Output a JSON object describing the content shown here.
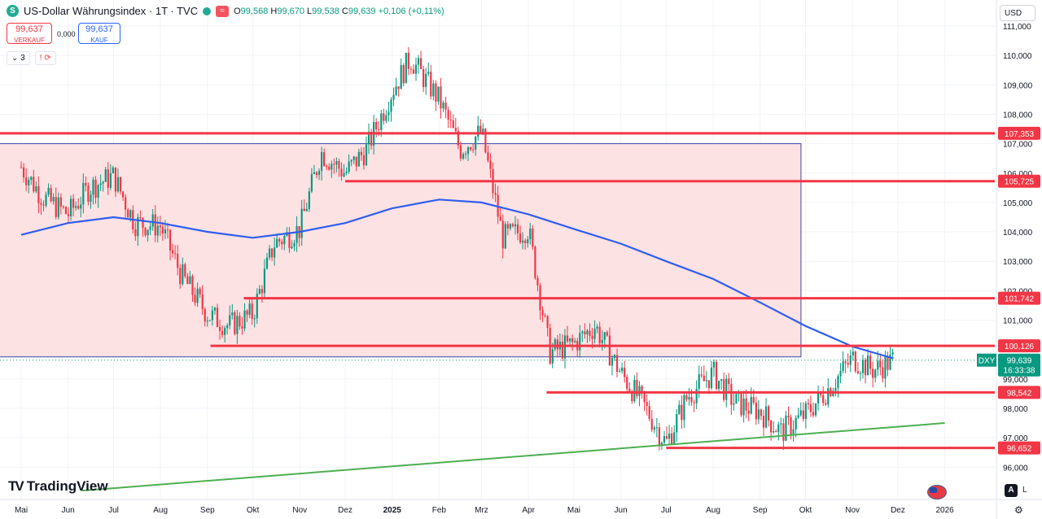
{
  "header": {
    "badge": "S",
    "title": "US-Dollar Währungsindex · 1T · TVC",
    "wave": "≈",
    "o_label": "O",
    "o": "99,568",
    "h_label": "H",
    "h": "99,670",
    "l_label": "L",
    "l": "99,538",
    "c_label": "C",
    "c": "99,639",
    "change": "+0,106 (+0,11%)"
  },
  "trade": {
    "sell_price": "99,637",
    "sell_label": "VERKAUF",
    "spread": "0,000",
    "buy_price": "99,637",
    "buy_label": "KAUF"
  },
  "indicators": {
    "count": "3",
    "toggle": "⌄",
    "alert": "!",
    "sync": "⟳"
  },
  "currency": "USD",
  "brand": "TradingView",
  "buttons": {
    "auto": "A",
    "log": "L",
    "settings": "⚙"
  },
  "colors": {
    "up": "#089981",
    "down": "#f23645",
    "ma": "#2f5ef0",
    "levels": "#f23645",
    "trend": "#4caf50",
    "zone_fill": "#fde2e4",
    "zone_border": "#3949ab",
    "price_label": "#089981"
  },
  "chart_data": {
    "type": "candlestick",
    "symbol": "DXY",
    "y_axis": {
      "min": 95.2,
      "max": 111.5,
      "ticks": [
        "111,000",
        "110,000",
        "109,000",
        "108,000",
        "107,000",
        "106,000",
        "105,000",
        "104,000",
        "103,000",
        "102,000",
        "101,000",
        "99,000",
        "98,000",
        "97,000",
        "96,000"
      ]
    },
    "x_axis": {
      "ticks": [
        "Mai",
        "Jun",
        "Jul",
        "Aug",
        "Sep",
        "Okt",
        "Nov",
        "Dez",
        "2025",
        "Feb",
        "Mrz",
        "Apr",
        "Mai",
        "Jun",
        "Jul",
        "Aug",
        "Sep",
        "Okt",
        "Nov",
        "Dez",
        "2026"
      ]
    },
    "horizontal_levels": [
      {
        "value": 107.353,
        "label": "107,353"
      },
      {
        "value": 105.725,
        "label": "105,725"
      },
      {
        "value": 101.742,
        "label": "101,742"
      },
      {
        "value": 100.126,
        "label": "100,126"
      },
      {
        "value": 98.542,
        "label": "98,542"
      },
      {
        "value": 96.652,
        "label": "96,652"
      }
    ],
    "last_price": {
      "ticker": "DXY",
      "value": "99,639",
      "countdown": "16:33:38"
    },
    "zone": {
      "from": "2024-05",
      "to": "2025-09",
      "top": 107.0,
      "bottom": 99.75
    },
    "close_path": [
      [
        "2024-05-01",
        106.2
      ],
      [
        "2024-05-15",
        105.2
      ],
      [
        "2024-06-01",
        104.6
      ],
      [
        "2024-06-15",
        105.5
      ],
      [
        "2024-07-01",
        105.9
      ],
      [
        "2024-07-15",
        104.3
      ],
      [
        "2024-08-01",
        104.2
      ],
      [
        "2024-08-15",
        102.5
      ],
      [
        "2024-09-01",
        101.2
      ],
      [
        "2024-09-15",
        100.8
      ],
      [
        "2024-10-01",
        101.2
      ],
      [
        "2024-10-15",
        103.6
      ],
      [
        "2024-11-01",
        104.1
      ],
      [
        "2024-11-15",
        106.7
      ],
      [
        "2024-12-01",
        106.0
      ],
      [
        "2024-12-15",
        106.8
      ],
      [
        "2025-01-01",
        108.8
      ],
      [
        "2025-01-13",
        109.9
      ],
      [
        "2025-02-01",
        108.5
      ],
      [
        "2025-02-15",
        106.8
      ],
      [
        "2025-03-01",
        107.4
      ],
      [
        "2025-03-15",
        103.8
      ],
      [
        "2025-04-01",
        104.1
      ],
      [
        "2025-04-15",
        99.9
      ],
      [
        "2025-05-01",
        100.2
      ],
      [
        "2025-05-15",
        100.8
      ],
      [
        "2025-06-01",
        99.2
      ],
      [
        "2025-06-15",
        98.2
      ],
      [
        "2025-07-01",
        96.8
      ],
      [
        "2025-07-15",
        98.4
      ],
      [
        "2025-08-01",
        99.2
      ],
      [
        "2025-08-15",
        98.2
      ],
      [
        "2025-09-01",
        97.9
      ],
      [
        "2025-09-15",
        97.2
      ],
      [
        "2025-10-01",
        97.8
      ],
      [
        "2025-10-15",
        98.6
      ],
      [
        "2025-11-01",
        99.7
      ],
      [
        "2025-11-15",
        99.3
      ],
      [
        "2025-11-28",
        99.639
      ]
    ],
    "ma_path": [
      [
        "2024-05-01",
        103.9
      ],
      [
        "2024-06-01",
        104.3
      ],
      [
        "2024-07-01",
        104.5
      ],
      [
        "2024-08-01",
        104.3
      ],
      [
        "2024-09-01",
        104.0
      ],
      [
        "2024-10-01",
        103.8
      ],
      [
        "2024-11-01",
        104.0
      ],
      [
        "2024-12-01",
        104.3
      ],
      [
        "2025-01-01",
        104.8
      ],
      [
        "2025-02-01",
        105.1
      ],
      [
        "2025-03-01",
        105.0
      ],
      [
        "2025-04-01",
        104.6
      ],
      [
        "2025-05-01",
        104.1
      ],
      [
        "2025-06-01",
        103.6
      ],
      [
        "2025-07-01",
        103.0
      ],
      [
        "2025-08-01",
        102.4
      ],
      [
        "2025-09-01",
        101.6
      ],
      [
        "2025-10-01",
        100.8
      ],
      [
        "2025-11-01",
        100.1
      ],
      [
        "2025-11-28",
        99.7
      ]
    ],
    "trendline": {
      "from": [
        "2024-06-10",
        95.2
      ],
      "to": [
        "2026-01-01",
        97.5
      ]
    }
  }
}
